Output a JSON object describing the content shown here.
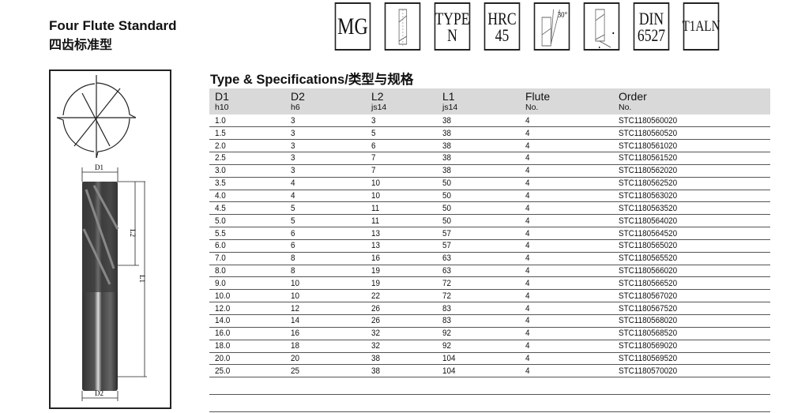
{
  "header": {
    "title": "Four Flute Standard",
    "subtitle": "四齿标准型"
  },
  "badges": [
    {
      "label": "MG"
    },
    {
      "icon": "helix-cylinder-icon"
    },
    {
      "line1": "TYPE",
      "line2": "N"
    },
    {
      "line1": "HRC",
      "line2": "45"
    },
    {
      "icon": "helix-angle-icon",
      "label": "30°"
    },
    {
      "icon": "tolerance-cylinder-icon"
    },
    {
      "line1": "DIN",
      "line2": "6527"
    },
    {
      "label": "T1ALN"
    }
  ],
  "drawing": {
    "d1": "D1",
    "d2": "D2",
    "l1": "L1",
    "l2": "L2"
  },
  "section_title": "Type & Specifications/类型与规格",
  "table": {
    "headers": [
      {
        "t": "D1",
        "s": "h10"
      },
      {
        "t": "D2",
        "s": "h6"
      },
      {
        "t": "L2",
        "s": "js14"
      },
      {
        "t": "L1",
        "s": "js14"
      },
      {
        "t": "Flute",
        "s": "No."
      },
      {
        "t": "Order",
        "s": "No."
      }
    ],
    "rows": [
      [
        "1.0",
        "3",
        "3",
        "38",
        "4",
        "STC1180560020"
      ],
      [
        "1.5",
        "3",
        "5",
        "38",
        "4",
        "STC1180560520"
      ],
      [
        "2.0",
        "3",
        "6",
        "38",
        "4",
        "STC1180561020"
      ],
      [
        "2.5",
        "3",
        "7",
        "38",
        "4",
        "STC1180561520"
      ],
      [
        "3.0",
        "3",
        "7",
        "38",
        "4",
        "STC1180562020"
      ],
      [
        "3.5",
        "4",
        "10",
        "50",
        "4",
        "STC1180562520"
      ],
      [
        "4.0",
        "4",
        "10",
        "50",
        "4",
        "STC1180563020"
      ],
      [
        "4.5",
        "5",
        "11",
        "50",
        "4",
        "STC1180563520"
      ],
      [
        "5.0",
        "5",
        "11",
        "50",
        "4",
        "STC1180564020"
      ],
      [
        "5.5",
        "6",
        "13",
        "57",
        "4",
        "STC1180564520"
      ],
      [
        "6.0",
        "6",
        "13",
        "57",
        "4",
        "STC1180565020"
      ],
      [
        "7.0",
        "8",
        "16",
        "63",
        "4",
        "STC1180565520"
      ],
      [
        "8.0",
        "8",
        "19",
        "63",
        "4",
        "STC1180566020"
      ],
      [
        "9.0",
        "10",
        "19",
        "72",
        "4",
        "STC1180566520"
      ],
      [
        "10.0",
        "10",
        "22",
        "72",
        "4",
        "STC1180567020"
      ],
      [
        "12.0",
        "12",
        "26",
        "83",
        "4",
        "STC1180567520"
      ],
      [
        "14.0",
        "14",
        "26",
        "83",
        "4",
        "STC1180568020"
      ],
      [
        "16.0",
        "16",
        "32",
        "92",
        "4",
        "STC1180568520"
      ],
      [
        "18.0",
        "18",
        "32",
        "92",
        "4",
        "STC1180569020"
      ],
      [
        "20.0",
        "20",
        "38",
        "104",
        "4",
        "STC1180569520"
      ],
      [
        "25.0",
        "25",
        "38",
        "104",
        "4",
        "STC1180570020"
      ]
    ]
  }
}
